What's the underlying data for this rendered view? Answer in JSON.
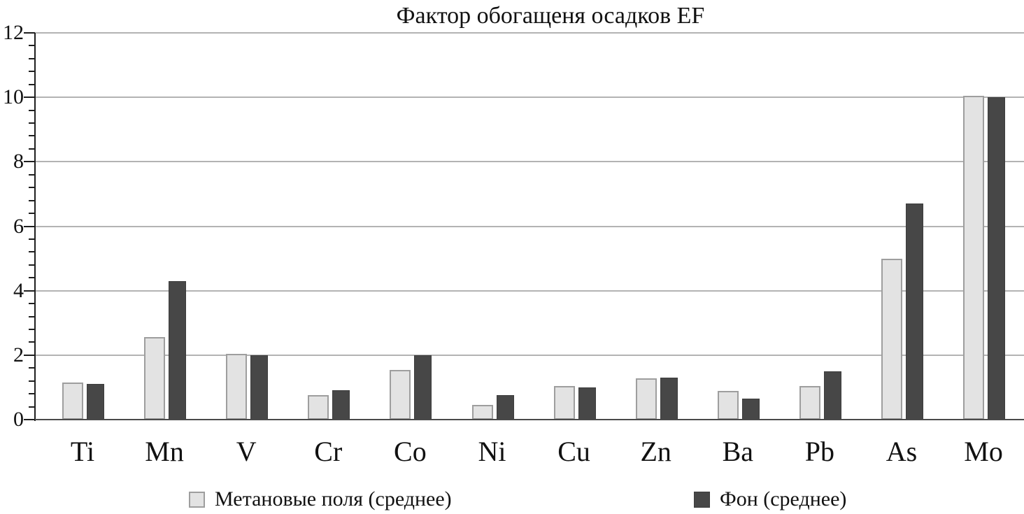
{
  "title": "Фактор обогащеня осадков EF",
  "chart_data": {
    "type": "bar",
    "title": "Фактор обогащеня осадков EF",
    "categories": [
      "Ti",
      "Mn",
      "V",
      "Cr",
      "Co",
      "Ni",
      "Cu",
      "Zn",
      "Ba",
      "Pb",
      "As",
      "Mo"
    ],
    "series": [
      {
        "name": "Метановые поля (среднее)",
        "color": "#e3e3e3",
        "border_color": "#9e9e9e",
        "values": [
          1.15,
          2.55,
          2.05,
          0.75,
          1.55,
          0.45,
          1.05,
          1.28,
          0.9,
          1.05,
          5.0,
          10.05
        ]
      },
      {
        "name": "Фон (среднее)",
        "color": "#474747",
        "border_color": "#3d3d3d",
        "values": [
          1.1,
          4.3,
          2.0,
          0.92,
          2.0,
          0.75,
          1.0,
          1.3,
          0.65,
          1.5,
          6.7,
          10.0
        ]
      }
    ],
    "xlabel": "",
    "ylabel": "",
    "ylim": [
      0,
      12
    ],
    "y_tick_labels": [
      "0",
      "2",
      "4",
      "6",
      "8",
      "10",
      "12"
    ],
    "y_major_step": 2,
    "y_minor_step": 0.4,
    "grid": "horizontal-major",
    "legend_position": "bottom"
  },
  "colors": {
    "gridline": "#b3b3b3",
    "axis": "#1f1f1f",
    "baseline": "#4a4a4a",
    "text": "#111111",
    "background": "#ffffff"
  }
}
